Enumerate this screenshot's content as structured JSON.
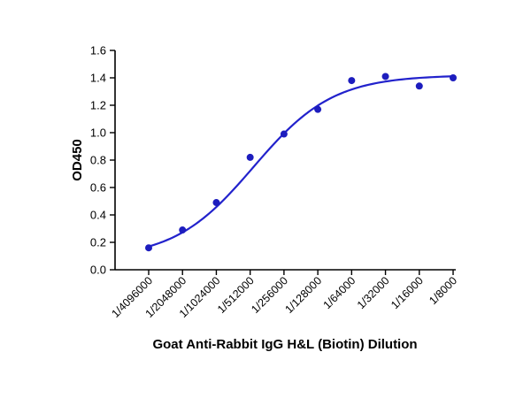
{
  "figure": {
    "background_color": "#ffffff",
    "curve_color": "#2222cc",
    "point_color": "#1d1dbe",
    "axis_color": "#000000"
  },
  "chart_data": {
    "type": "scatter",
    "title": "",
    "xlabel": "Goat Anti-Rabbit IgG H&L (Biotin) Dilution",
    "ylabel": "OD450",
    "categories": [
      "1/4096000",
      "1/2048000",
      "1/1024000",
      "1/512000",
      "1/256000",
      "1/128000",
      "1/64000",
      "1/32000",
      "1/16000",
      "1/8000"
    ],
    "values": [
      0.16,
      0.29,
      0.49,
      0.82,
      0.99,
      1.17,
      1.38,
      1.41,
      1.34,
      1.4
    ],
    "ylim": [
      0.0,
      1.6
    ],
    "ytick_step": 0.2,
    "grid": false,
    "legend": "none",
    "fit": {
      "type": "logistic-4pl",
      "bottom": 0.08,
      "top": 1.42,
      "midpoint_index": 4.1,
      "slope": 0.85
    }
  }
}
